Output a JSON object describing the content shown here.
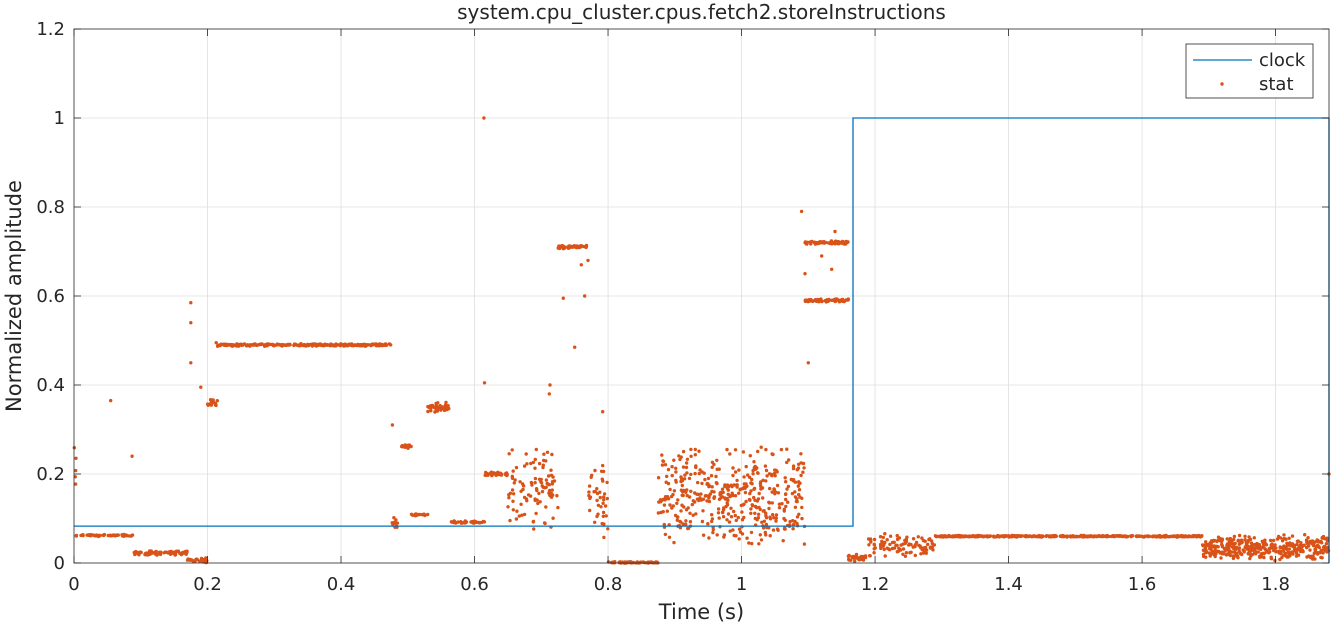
{
  "chart_data": {
    "type": "line",
    "title": "system.cpu_cluster.cpus.fetch2.storeInstructions",
    "xlabel": "Time (s)",
    "ylabel": "Normalized amplitude",
    "xlim": [
      0,
      1.88
    ],
    "ylim": [
      0,
      1.2
    ],
    "xticks": [
      0,
      0.2,
      0.4,
      0.6,
      0.8,
      1,
      1.2,
      1.4,
      1.6,
      1.8
    ],
    "xtick_labels": [
      "0",
      "0.2",
      "0.4",
      "0.6",
      "0.8",
      "1",
      "1.2",
      "1.4",
      "1.6",
      "1.8"
    ],
    "yticks": [
      0,
      0.2,
      0.4,
      0.6,
      0.8,
      1,
      1.2
    ],
    "ytick_labels": [
      "0",
      "0.2",
      "0.4",
      "0.6",
      "0.8",
      "1",
      "1.2"
    ],
    "grid": true,
    "legend_position": "top-right",
    "series": [
      {
        "name": "clock",
        "style": "line",
        "color": "#0072BD",
        "x": [
          0,
          1.167,
          1.167,
          1.88,
          1.88
        ],
        "y": [
          0.083,
          0.083,
          1.0,
          1.0,
          0.0
        ]
      },
      {
        "name": "stat",
        "style": "markers",
        "color": "#D95319",
        "segments": [
          {
            "x0": 0.0,
            "x1": 0.003,
            "y": 0.2,
            "spread": 0.1,
            "density": 5
          },
          {
            "x0": 0.003,
            "x1": 0.09,
            "y": 0.062,
            "spread": 0.003,
            "density": 2
          },
          {
            "x0": 0.09,
            "x1": 0.17,
            "y": 0.023,
            "spread": 0.006,
            "density": 3
          },
          {
            "x0": 0.17,
            "x1": 0.2,
            "y": 0.006,
            "spread": 0.006,
            "density": 2
          },
          {
            "x0": 0.2,
            "x1": 0.215,
            "y": 0.36,
            "spread": 0.01,
            "density": 3
          },
          {
            "x0": 0.215,
            "x1": 0.475,
            "y": 0.49,
            "spread": 0.003,
            "density": 3
          },
          {
            "x0": 0.475,
            "x1": 0.49,
            "y": 0.09,
            "spread": 0.02,
            "density": 2
          },
          {
            "x0": 0.49,
            "x1": 0.505,
            "y": 0.262,
            "spread": 0.005,
            "density": 3
          },
          {
            "x0": 0.505,
            "x1": 0.53,
            "y": 0.108,
            "spread": 0.003,
            "density": 2
          },
          {
            "x0": 0.53,
            "x1": 0.563,
            "y": 0.35,
            "spread": 0.012,
            "density": 4
          },
          {
            "x0": 0.563,
            "x1": 0.615,
            "y": 0.092,
            "spread": 0.003,
            "density": 2
          },
          {
            "x0": 0.615,
            "x1": 0.65,
            "y": 0.2,
            "spread": 0.005,
            "density": 3
          },
          {
            "x0": 0.65,
            "x1": 0.725,
            "y": 0.17,
            "spread": 0.1,
            "density": 4
          },
          {
            "x0": 0.725,
            "x1": 0.77,
            "y": 0.71,
            "spread": 0.004,
            "density": 3
          },
          {
            "x0": 0.77,
            "x1": 0.8,
            "y": 0.15,
            "spread": 0.1,
            "density": 4
          },
          {
            "x0": 0.8,
            "x1": 0.875,
            "y": 0.001,
            "spread": 0.002,
            "density": 3
          },
          {
            "x0": 0.875,
            "x1": 1.095,
            "y": 0.15,
            "spread": 0.12,
            "density": 6
          },
          {
            "x0": 1.095,
            "x1": 1.16,
            "y": 0.72,
            "spread": 0.004,
            "density": 3
          },
          {
            "x0": 1.095,
            "x1": 1.16,
            "y": 0.59,
            "spread": 0.004,
            "density": 3
          },
          {
            "x0": 1.16,
            "x1": 1.19,
            "y": 0.012,
            "spread": 0.01,
            "density": 3
          },
          {
            "x0": 1.19,
            "x1": 1.29,
            "y": 0.04,
            "spread": 0.03,
            "density": 3
          },
          {
            "x0": 1.29,
            "x1": 1.69,
            "y": 0.06,
            "spread": 0.002,
            "density": 3
          },
          {
            "x0": 1.69,
            "x1": 1.88,
            "y": 0.035,
            "spread": 0.03,
            "density": 6
          }
        ],
        "outliers": [
          {
            "x": 0.055,
            "y": 0.365
          },
          {
            "x": 0.087,
            "y": 0.24
          },
          {
            "x": 0.175,
            "y": 0.585
          },
          {
            "x": 0.175,
            "y": 0.54
          },
          {
            "x": 0.175,
            "y": 0.45
          },
          {
            "x": 0.19,
            "y": 0.395
          },
          {
            "x": 0.213,
            "y": 0.495
          },
          {
            "x": 0.477,
            "y": 0.31
          },
          {
            "x": 0.545,
            "y": 0.36
          },
          {
            "x": 0.614,
            "y": 1.0
          },
          {
            "x": 0.615,
            "y": 0.405
          },
          {
            "x": 0.712,
            "y": 0.38
          },
          {
            "x": 0.713,
            "y": 0.4
          },
          {
            "x": 0.733,
            "y": 0.595
          },
          {
            "x": 0.75,
            "y": 0.485
          },
          {
            "x": 0.76,
            "y": 0.67
          },
          {
            "x": 0.765,
            "y": 0.6
          },
          {
            "x": 0.77,
            "y": 0.68
          },
          {
            "x": 0.792,
            "y": 0.34
          },
          {
            "x": 1.09,
            "y": 0.79
          },
          {
            "x": 1.095,
            "y": 0.65
          },
          {
            "x": 1.1,
            "y": 0.45
          },
          {
            "x": 1.12,
            "y": 0.69
          },
          {
            "x": 1.135,
            "y": 0.66
          },
          {
            "x": 1.14,
            "y": 0.745
          },
          {
            "x": 1.88,
            "y": 0.2
          }
        ]
      }
    ]
  }
}
